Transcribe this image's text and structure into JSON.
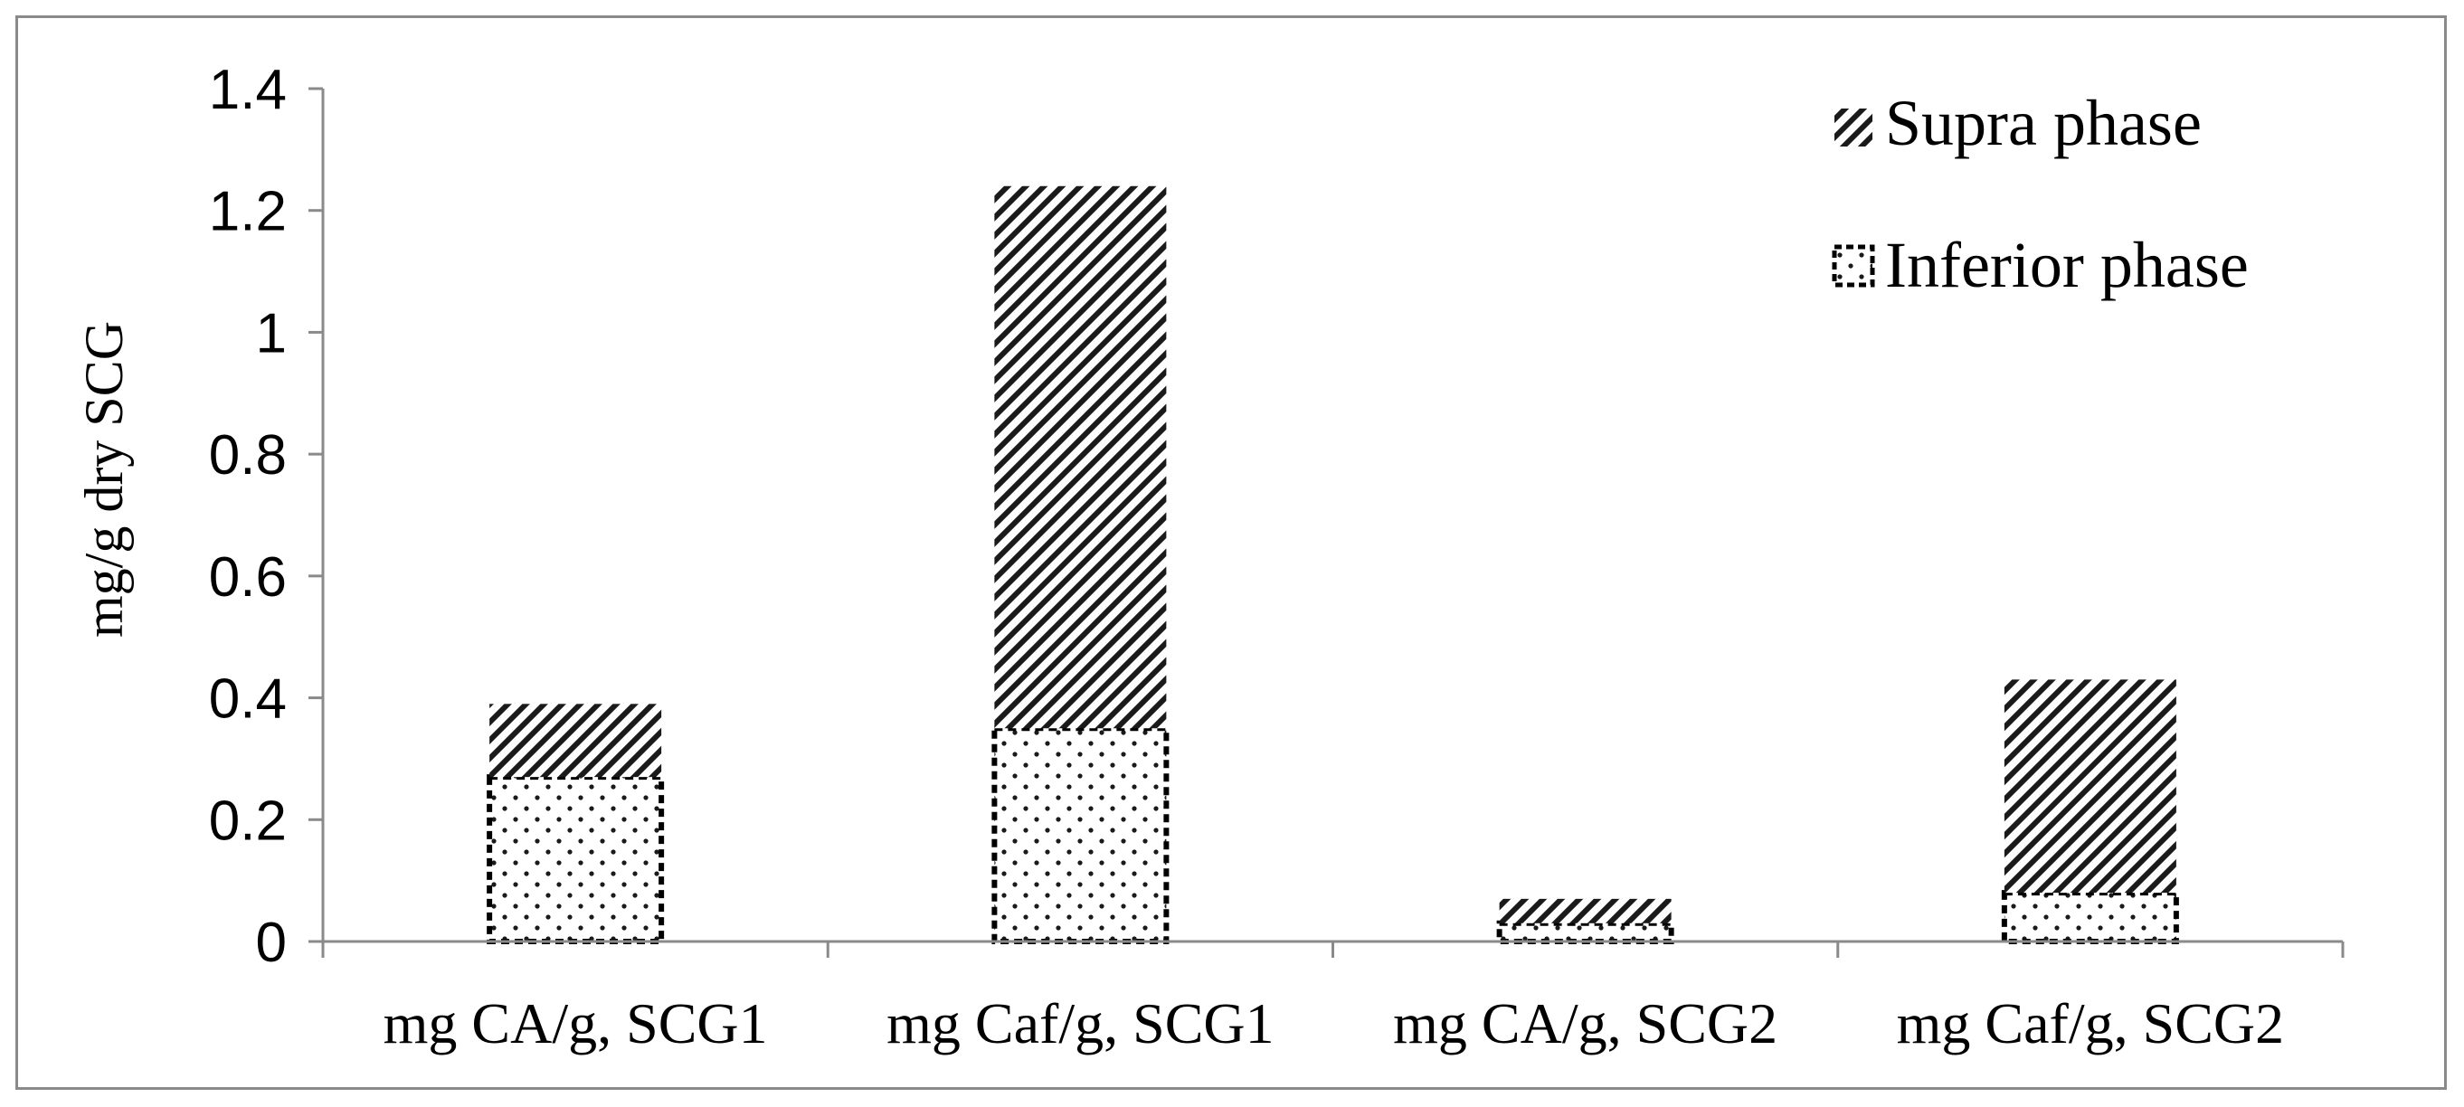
{
  "chart_data": {
    "type": "bar",
    "stacked": true,
    "categories": [
      "mg CA/g, SCG1",
      "mg Caf/g, SCG1",
      "mg CA/g, SCG2",
      "mg Caf/g, SCG2"
    ],
    "series": [
      {
        "name": "Inferior phase",
        "values": [
          0.27,
          0.35,
          0.03,
          0.08
        ],
        "pattern": "dotted"
      },
      {
        "name": "Supra phase",
        "values": [
          0.12,
          0.89,
          0.04,
          0.35
        ],
        "pattern": "diagonal"
      }
    ],
    "legend_order": [
      "Supra phase",
      "Inferior phase"
    ],
    "ylabel": "mg/g dry SCG",
    "xlabel": "",
    "ylim": [
      0,
      1.4
    ],
    "yticks": [
      "0",
      "0.2",
      "0.4",
      "0.6",
      "0.8",
      "1",
      "1.2",
      "1.4"
    ],
    "grid": false,
    "legend_position": "top-right"
  }
}
